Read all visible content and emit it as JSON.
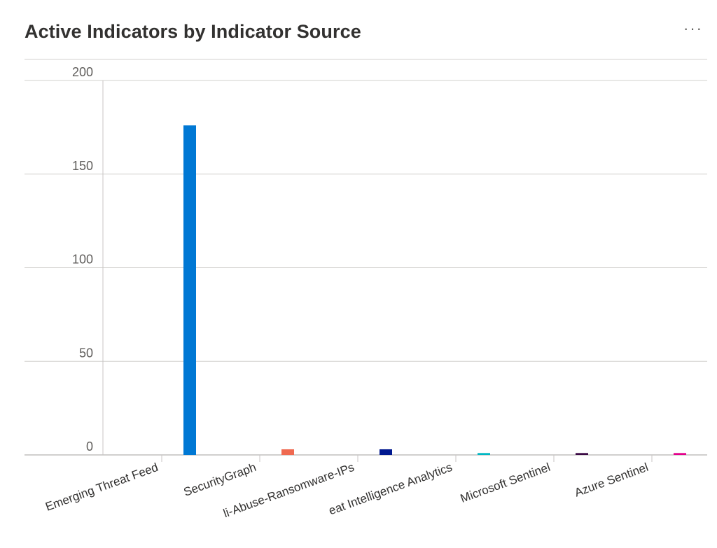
{
  "header": {
    "title": "Active Indicators by Indicator Source",
    "more_label": "···"
  },
  "chart_data": {
    "type": "bar",
    "title": "Active Indicators by Indicator Source",
    "xlabel": "",
    "ylabel": "",
    "ylim": [
      0,
      200
    ],
    "yticks": [
      0,
      50,
      100,
      150,
      200
    ],
    "grid": true,
    "categories": [
      "Bambenek Emerging Threat Feed",
      "SecurityGraph",
      "Abuse.ch-Feodo-Abuse-Ransomware-IPs",
      "Microsoft Threat Intelligence Analytics",
      "Microsoft Sentinel",
      "Azure Sentinel"
    ],
    "tick_labels": [
      "Emerging Threat Feed",
      "SecurityGraph",
      "li-Abuse-Ransomware-IPs",
      "eat Intelligence Analytics",
      "Microsoft Sentinel",
      "Azure Sentinel"
    ],
    "values": [
      176,
      3,
      3,
      1,
      1,
      1
    ],
    "colors": [
      "#0078d4",
      "#ef6950",
      "#00188f",
      "#00b7c3",
      "#3b0a45",
      "#e3008c"
    ]
  }
}
